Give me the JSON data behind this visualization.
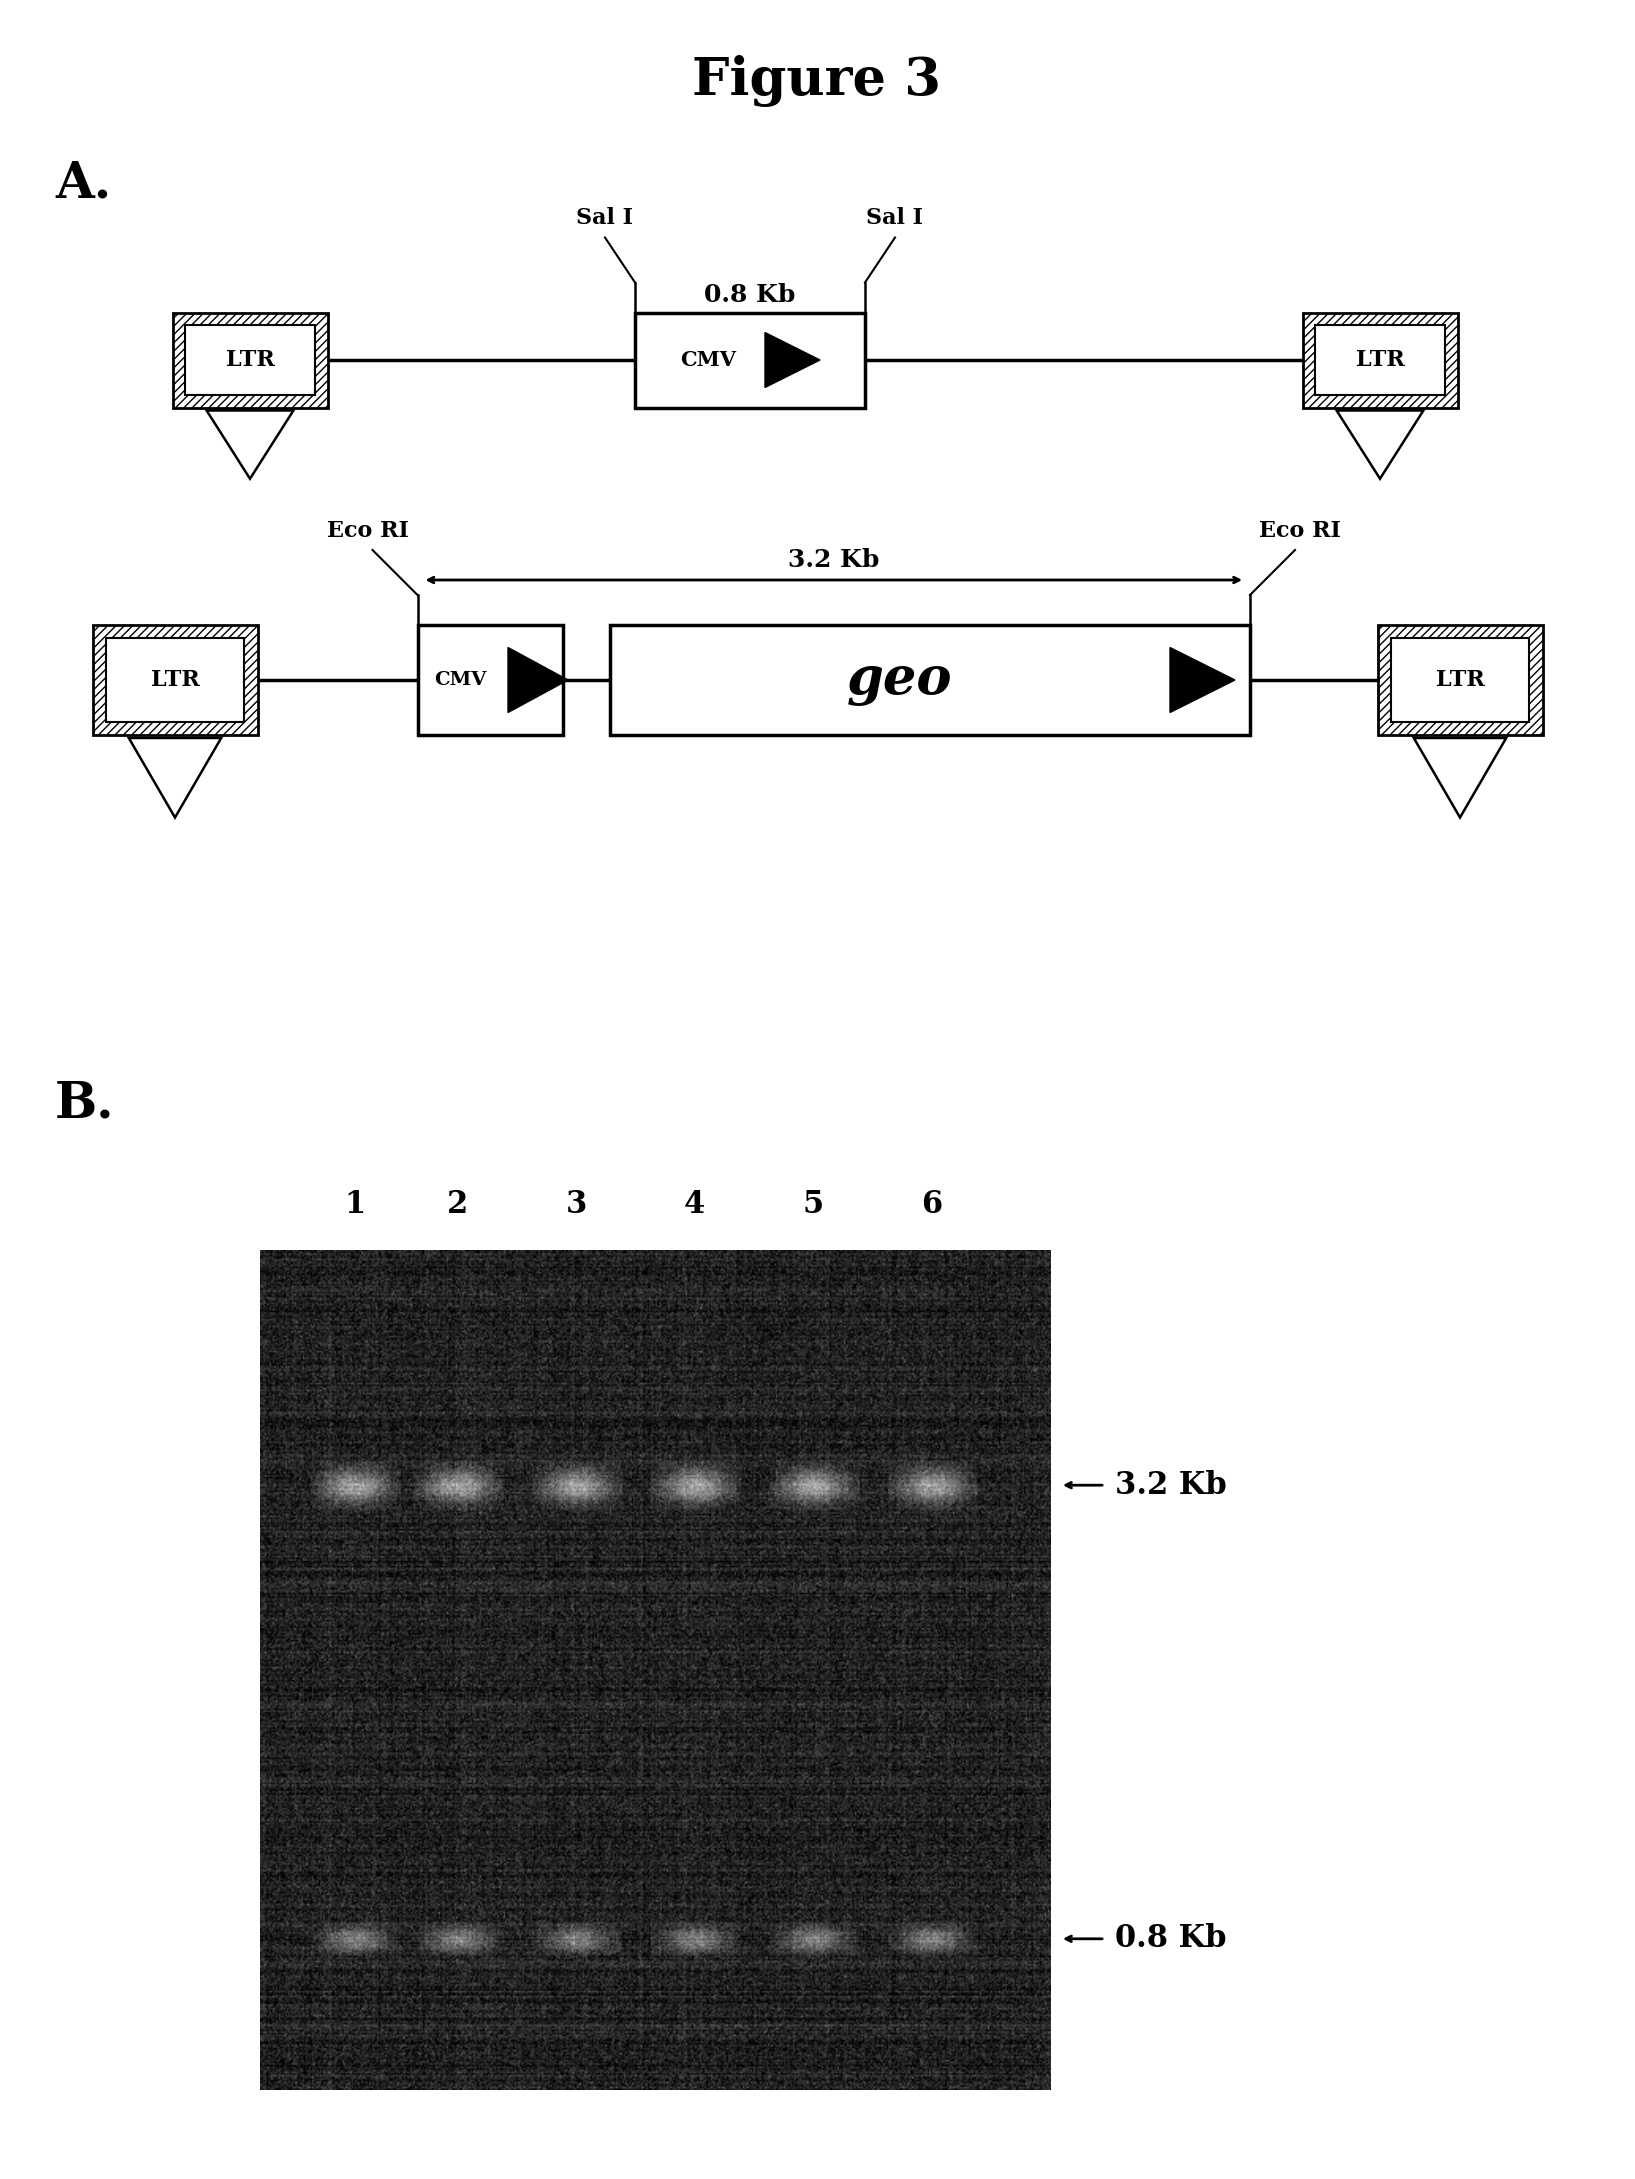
{
  "title": "Figure 3",
  "bg_color": "#ffffff",
  "panel_A_label": "A.",
  "panel_B_label": "B.",
  "gel_lanes": [
    "1",
    "2",
    "3",
    "4",
    "5",
    "6"
  ],
  "gel_band_32_label": "3.2 Kb",
  "gel_band_08_label": "0.8 Kb",
  "diag1_sal_left": "Sal I",
  "diag1_sal_right": "Sal I",
  "diag1_kb": "0.8 Kb",
  "diag2_eco_left": "Eco RI",
  "diag2_eco_right": "Eco RI",
  "diag2_kb": "3.2 Kb",
  "ltr_label": "LTR",
  "cmv_label": "CMV",
  "geo_label": "geo"
}
